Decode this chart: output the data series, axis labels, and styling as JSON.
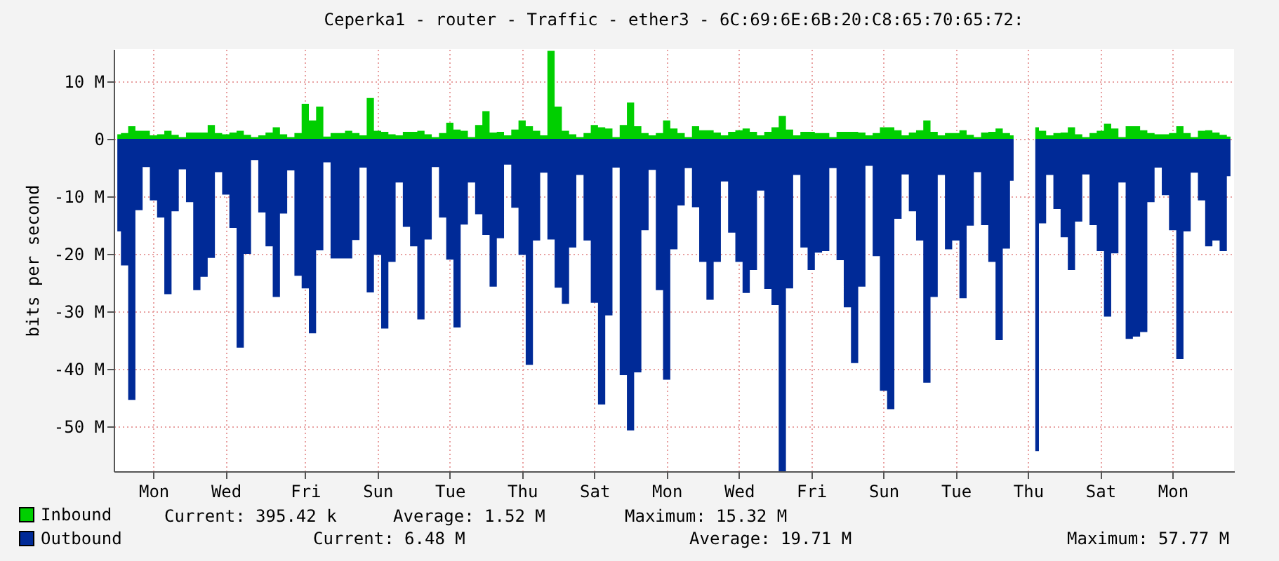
{
  "chart_data": {
    "type": "area",
    "title": "Ceperka1 - router - Traffic - ether3 - 6C:69:6E:6B:20:C8:65:70:65:72:",
    "ylabel": "bits per second",
    "categories": [
      null,
      null,
      null,
      null,
      null,
      "Mon",
      null,
      null,
      null,
      null,
      null,
      null,
      null,
      null,
      null,
      "Wed",
      null,
      null,
      null,
      null,
      null,
      null,
      null,
      null,
      null,
      null,
      "Fri",
      null,
      null,
      null,
      null,
      null,
      null,
      null,
      null,
      null,
      "Sun",
      null,
      null,
      null,
      null,
      null,
      null,
      null,
      null,
      null,
      "Tue",
      null,
      null,
      null,
      null,
      null,
      null,
      null,
      null,
      null,
      "Thu",
      null,
      null,
      null,
      null,
      null,
      null,
      null,
      null,
      null,
      "Sat",
      null,
      null,
      null,
      null,
      null,
      null,
      null,
      null,
      null,
      "Mon",
      null,
      null,
      null,
      null,
      null,
      null,
      null,
      null,
      null,
      "Wed",
      null,
      null,
      null,
      null,
      null,
      null,
      null,
      null,
      null,
      "Fri",
      null,
      null,
      null,
      null,
      null,
      null,
      null,
      null,
      null,
      "Sun",
      null,
      null,
      null,
      null,
      null,
      null,
      null,
      null,
      null,
      "Tue",
      null,
      null,
      null,
      null,
      null,
      null,
      null,
      null,
      null,
      "Thu",
      null,
      null,
      null,
      null,
      null,
      null,
      null,
      null,
      null,
      "Sat",
      null,
      null,
      null,
      null,
      null,
      null,
      null,
      null,
      null,
      "Mon",
      null,
      null,
      null,
      null,
      null,
      null,
      null,
      null
    ],
    "series": [
      {
        "name": "Inbound",
        "color": "#00cf00",
        "values": [
          0.8,
          1.0,
          2.2,
          1.4,
          1.4,
          0.6,
          0.8,
          1.4,
          0.7,
          0.3,
          1.1,
          1.1,
          1.1,
          2.4,
          1.0,
          0.8,
          1.1,
          1.4,
          0.7,
          0.3,
          0.6,
          1.1,
          2.0,
          0.8,
          0.3,
          1.0,
          6.1,
          3.2,
          5.6,
          0.4,
          1.0,
          1.0,
          1.4,
          1.0,
          0.6,
          7.1,
          1.4,
          1.2,
          0.8,
          0.6,
          1.2,
          1.2,
          1.4,
          0.8,
          0.3,
          1.0,
          2.8,
          1.6,
          1.4,
          0.3,
          2.4,
          4.8,
          1.1,
          1.2,
          0.6,
          1.6,
          3.2,
          2.2,
          1.4,
          0.6,
          15.3,
          5.6,
          1.4,
          0.8,
          0.3,
          1.0,
          2.4,
          2.0,
          1.8,
          0.3,
          2.4,
          6.3,
          2.2,
          1.0,
          0.6,
          1.0,
          3.2,
          1.8,
          1.0,
          0.3,
          2.2,
          1.5,
          1.5,
          1.1,
          0.6,
          1.2,
          1.5,
          1.8,
          1.2,
          0.6,
          1.2,
          2.0,
          4.0,
          1.6,
          0.6,
          1.2,
          1.2,
          1.0,
          1.0,
          0.3,
          1.2,
          1.2,
          1.2,
          1.1,
          0.6,
          1.0,
          2.0,
          2.0,
          1.5,
          0.6,
          1.1,
          1.5,
          3.2,
          1.2,
          0.6,
          1.0,
          1.0,
          1.5,
          0.7,
          0.3,
          1.1,
          1.2,
          1.8,
          1.0,
          0.6,
          null,
          null,
          2.0,
          1.4,
          0.6,
          1.0,
          1.1,
          2.0,
          0.8,
          0.3,
          1.0,
          1.4,
          2.6,
          1.8,
          0.3,
          2.2,
          2.2,
          1.5,
          1.0,
          0.8,
          0.8,
          1.0,
          2.2,
          1.0,
          0.3,
          1.4,
          1.5,
          1.1,
          0.7,
          0.4
        ]
      },
      {
        "name": "Outbound",
        "color": "#002a97",
        "values": [
          -16.1,
          -22,
          -45.4,
          -12.4,
          -4.9,
          -10.7,
          -13.7,
          -27,
          -12.6,
          -5.3,
          -11,
          -26.3,
          -24,
          -20.7,
          -5.8,
          -9.7,
          -15.5,
          -36.3,
          -20,
          -3.7,
          -12.8,
          -18.7,
          -27.5,
          -13,
          -5.5,
          -23.8,
          -26,
          -33.8,
          -19.4,
          -4.1,
          -20.8,
          -20.8,
          -20.8,
          -17.6,
          -5,
          -26.7,
          -20.2,
          -33,
          -21.4,
          -7.6,
          -15.3,
          -18.7,
          -31.4,
          -17.5,
          -4.9,
          -13.7,
          -21,
          -32.8,
          -14.9,
          -7.6,
          -13.1,
          -16.7,
          -25.7,
          -17.3,
          -4.5,
          -12,
          -20.2,
          -39.3,
          -17.7,
          -5.9,
          -17.5,
          -25.9,
          -28.7,
          -18.9,
          -6.3,
          -17.7,
          -28.5,
          -46.2,
          -30.7,
          -5,
          -41.1,
          -50.7,
          -40.6,
          -15.9,
          -5.4,
          -26.3,
          -41.9,
          -19.2,
          -11.6,
          -5.1,
          -11.9,
          -21.4,
          -28,
          -21.4,
          -7.4,
          -16.3,
          -21.4,
          -26.8,
          -22.8,
          -9,
          -26.1,
          -28.9,
          -57.8,
          -26,
          -6.3,
          -18.9,
          -22.8,
          -19.8,
          -19.5,
          -5.1,
          -21.1,
          -29.3,
          -39,
          -25.7,
          -4.7,
          -20.4,
          -43.8,
          -47,
          -13.9,
          -6.2,
          -12.6,
          -17.7,
          -42.4,
          -27.5,
          -6.3,
          -19.2,
          -17.7,
          -27.7,
          -15.1,
          -5.8,
          -15,
          -21.4,
          -35,
          -19.1,
          -7.3,
          null,
          null,
          -54.3,
          -14.7,
          -6.3,
          -12.2,
          -17.1,
          -22.8,
          -14.4,
          -6.2,
          -15,
          -19.5,
          -30.9,
          -19.9,
          -7.6,
          -34.8,
          -34.4,
          -33.6,
          -11,
          -5,
          -9.8,
          -15.9,
          -38.3,
          -16.1,
          -5.9,
          -10.7,
          -18.7,
          -17.7,
          -19.5,
          -6.5
        ]
      }
    ],
    "ylim": [
      -57.8,
      15.6
    ],
    "yticks": [
      {
        "value": 10,
        "label": "10 M"
      },
      {
        "value": 0,
        "label": "0"
      },
      {
        "value": -10,
        "label": "-10 M"
      },
      {
        "value": -20,
        "label": "-20 M"
      },
      {
        "value": -30,
        "label": "-30 M"
      },
      {
        "value": -40,
        "label": "-40 M"
      },
      {
        "value": -50,
        "label": "-50 M"
      }
    ],
    "grid": true,
    "legend": "bottom",
    "annotations": [
      "Current: 395.42 k",
      "Average: 1.52 M",
      "Maximum: 15.32 M",
      "Current: 6.48 M",
      "Average: 19.71 M",
      "Maximum: 57.77 M"
    ]
  }
}
